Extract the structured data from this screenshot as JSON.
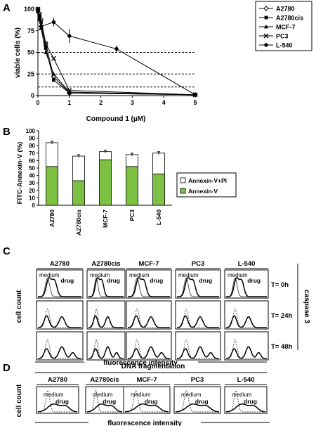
{
  "panels": {
    "A": "A",
    "B": "B",
    "C": "C",
    "D": "D"
  },
  "chart_data": [
    {
      "type": "line",
      "panel": "A",
      "xlabel": "Compound 1 (µM)",
      "ylabel": "viable cells (%)",
      "xlim": [
        0,
        5
      ],
      "ylim": [
        0,
        100
      ],
      "x_ticks": [
        0,
        1,
        2,
        3,
        4,
        5
      ],
      "y_ticks": [
        0,
        25,
        50,
        75,
        100
      ],
      "reference_lines_y": [
        10,
        25,
        50
      ],
      "legend_position": "top-right",
      "series": [
        {
          "name": "A2780",
          "marker": "open-diamond",
          "x": [
            0,
            0.05,
            0.1,
            0.25,
            0.5,
            1,
            5
          ],
          "y": [
            100,
            95,
            88,
            60,
            22,
            3,
            1
          ]
        },
        {
          "name": "A2780cis",
          "marker": "filled-square",
          "x": [
            0,
            0.05,
            0.1,
            0.25,
            0.5,
            1,
            5
          ],
          "y": [
            100,
            93,
            85,
            55,
            18,
            3,
            1
          ]
        },
        {
          "name": "MCF-7",
          "marker": "filled-triangle",
          "x": [
            0,
            0.05,
            0.1,
            0.25,
            0.5,
            1,
            5
          ],
          "y": [
            100,
            88,
            78,
            50,
            25,
            4,
            1
          ]
        },
        {
          "name": "PC3",
          "marker": "cross",
          "x": [
            0,
            0.05,
            0.1,
            0.25,
            0.5,
            1,
            5
          ],
          "y": [
            100,
            90,
            78,
            60,
            43,
            6,
            1
          ]
        },
        {
          "name": "L-540",
          "marker": "filled-circle",
          "x": [
            0,
            0.05,
            0.1,
            0.5,
            1,
            2.5,
            5
          ],
          "y": [
            97,
            91,
            80,
            85,
            69,
            54,
            1
          ]
        }
      ]
    },
    {
      "type": "bar",
      "panel": "B",
      "stacked": true,
      "ylabel": "FITC-Annexin-V (%)",
      "ylim": [
        0,
        100
      ],
      "y_ticks": [
        0,
        10,
        20,
        30,
        40,
        50,
        60,
        70,
        80,
        90,
        100
      ],
      "categories": [
        "A2780",
        "A2780cis",
        "MCF-7",
        "PC3",
        "L-540"
      ],
      "legend_position": "right",
      "series": [
        {
          "name": "Annexin-V",
          "color": "#7dc142",
          "values": [
            52,
            33,
            61,
            52,
            42
          ]
        },
        {
          "name": "Annexin-V+PI",
          "color": "#ffffff",
          "values": [
            32,
            33,
            11,
            16,
            28
          ]
        }
      ]
    }
  ],
  "panel_c": {
    "columns": [
      "A2780",
      "A2780cis",
      "MCF-7",
      "PC3",
      "L-540"
    ],
    "rows": [
      "T= 0h",
      "T= 24h",
      "T= 48h"
    ],
    "ylabel": "cell count",
    "xlabel": "fluorescence intensity",
    "side_label": "caspase 3",
    "medium_label": "medium",
    "drug_label": "drug"
  },
  "panel_d": {
    "title": "DNA fragmentation",
    "columns": [
      "A2780",
      "A2780cis",
      "MCF-7",
      "PC3",
      "L-540"
    ],
    "ylabel": "cell count",
    "xlabel": "fluorescence intensity",
    "medium_label": "medium",
    "drug_label": "drug"
  },
  "colors": {
    "annexin_v": "#7dc142",
    "annexin_v_pi": "#ffffff",
    "line": "#000000",
    "grid": "#000000"
  }
}
